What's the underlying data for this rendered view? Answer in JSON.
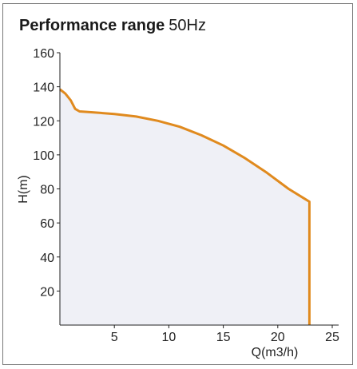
{
  "chart_data": {
    "type": "area",
    "title": "Performance range",
    "subtitle": "50Hz",
    "xlabel": "Q(m3/h)",
    "ylabel": "H(m)",
    "xlim": [
      0,
      25
    ],
    "ylim": [
      0,
      160
    ],
    "xticks": [
      "5",
      "10",
      "15",
      "20",
      "25"
    ],
    "yticks": [
      "20",
      "40",
      "60",
      "80",
      "100",
      "120",
      "140",
      "160"
    ],
    "grid": false,
    "series": [
      {
        "x": [
          0,
          0.5,
          1.0,
          1.4,
          1.8,
          3,
          5,
          7,
          9,
          11,
          13,
          15,
          17,
          19,
          21,
          22.9,
          22.9
        ],
        "y": [
          138.5,
          136,
          132,
          127,
          125.5,
          125,
          124,
          122.5,
          120,
          116.5,
          111.5,
          105.5,
          98,
          89.5,
          80,
          72.5,
          0
        ],
        "color": "#e08a1e",
        "fill": "#eff0f6"
      }
    ]
  }
}
